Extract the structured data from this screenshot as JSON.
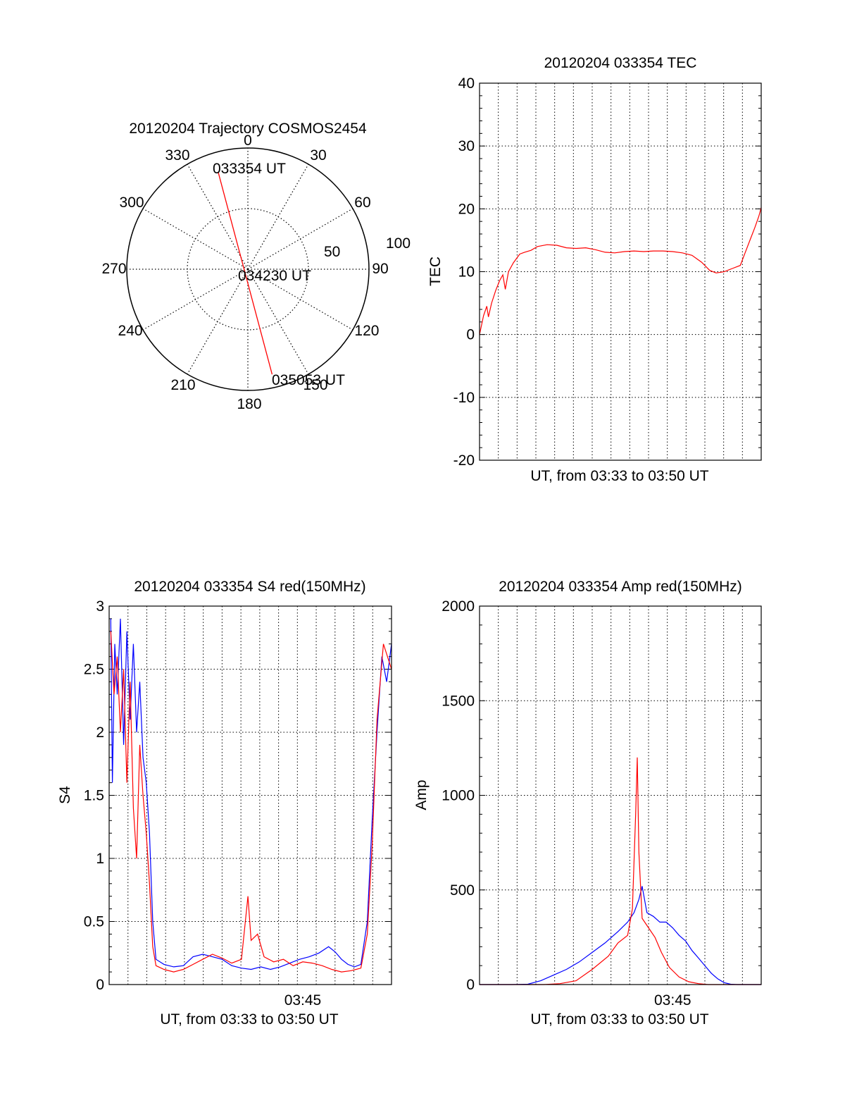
{
  "colors": {
    "red": "#ff0000",
    "blue": "#0000ff",
    "black": "#000000"
  },
  "chart_data": [
    {
      "type": "polar",
      "title": "20120204 Trajectory COSMOS2454",
      "azimuth_labels": [
        "0",
        "30",
        "60",
        "90",
        "120",
        "150",
        "180",
        "210",
        "240",
        "270",
        "300",
        "330"
      ],
      "radius_labels": [
        "50",
        "100"
      ],
      "track": {
        "start": {
          "azimuth": 343,
          "radius": 84
        },
        "end": {
          "azimuth": 167,
          "radius": 89
        }
      },
      "annotations": [
        "033354 UT",
        "034230 UT",
        "035053 UT"
      ],
      "line_color": "#ff0000"
    },
    {
      "type": "line",
      "title": "20120204 033354 TEC",
      "ylabel": "TEC",
      "xlabel": "UT, from 03:33 to 03:50 UT",
      "ylim": [
        -20,
        40
      ],
      "yticks": [
        "-20",
        "-10",
        "0",
        "10",
        "20",
        "30",
        "40"
      ],
      "xlim": [
        0,
        17.5
      ],
      "series": [
        {
          "color": "#ff0000",
          "points": [
            [
              0,
              0
            ],
            [
              0.25,
              3
            ],
            [
              0.45,
              4.5
            ],
            [
              0.55,
              2.8
            ],
            [
              0.75,
              5
            ],
            [
              1.0,
              7
            ],
            [
              1.25,
              8.6
            ],
            [
              1.45,
              9.5
            ],
            [
              1.6,
              7.2
            ],
            [
              1.8,
              10
            ],
            [
              2.1,
              11.4
            ],
            [
              2.5,
              12.8
            ],
            [
              2.8,
              13.1
            ],
            [
              3.2,
              13.4
            ],
            [
              3.6,
              14
            ],
            [
              4.2,
              14.3
            ],
            [
              4.8,
              14.2
            ],
            [
              5.4,
              13.8
            ],
            [
              6.0,
              13.7
            ],
            [
              6.6,
              13.8
            ],
            [
              7.2,
              13.5
            ],
            [
              7.8,
              13.1
            ],
            [
              8.4,
              13
            ],
            [
              9.0,
              13.2
            ],
            [
              9.6,
              13.3
            ],
            [
              10.2,
              13.2
            ],
            [
              10.8,
              13.3
            ],
            [
              11.4,
              13.3
            ],
            [
              12.0,
              13.2
            ],
            [
              12.6,
              13
            ],
            [
              13.2,
              12.6
            ],
            [
              13.8,
              11.5
            ],
            [
              14.3,
              10.2
            ],
            [
              14.7,
              9.8
            ],
            [
              15.2,
              10
            ],
            [
              15.7,
              10.5
            ],
            [
              16.2,
              11
            ],
            [
              16.5,
              13
            ],
            [
              16.8,
              15
            ],
            [
              17.1,
              17
            ],
            [
              17.35,
              18.8
            ],
            [
              17.5,
              20.2
            ]
          ]
        }
      ]
    },
    {
      "type": "line",
      "title": "20120204 033354 S4 red(150MHz)",
      "ylabel": "S4",
      "xlabel": "UT, from 03:33 to 03:50 UT",
      "ylim": [
        0,
        3
      ],
      "yticks": [
        "0",
        "0.5",
        "1",
        "1.5",
        "2",
        "2.5",
        "3"
      ],
      "xtick_label": "03:45",
      "xtick_position": 12.0,
      "xlim": [
        0,
        17.5
      ],
      "series": [
        {
          "name": "",
          "color": "#0000ff",
          "points": [
            [
              0.1,
              2.9
            ],
            [
              0.2,
              1.6
            ],
            [
              0.35,
              2.7
            ],
            [
              0.5,
              2.3
            ],
            [
              0.7,
              2.9
            ],
            [
              0.9,
              1.9
            ],
            [
              1.1,
              2.8
            ],
            [
              1.3,
              2.1
            ],
            [
              1.5,
              2.7
            ],
            [
              1.7,
              2.0
            ],
            [
              1.9,
              2.4
            ],
            [
              2.1,
              1.8
            ],
            [
              2.3,
              1.6
            ],
            [
              2.5,
              1.2
            ],
            [
              2.7,
              0.5
            ],
            [
              2.9,
              0.2
            ],
            [
              3.4,
              0.16
            ],
            [
              4.0,
              0.14
            ],
            [
              4.6,
              0.15
            ],
            [
              5.2,
              0.22
            ],
            [
              5.8,
              0.24
            ],
            [
              6.4,
              0.22
            ],
            [
              7.0,
              0.2
            ],
            [
              7.6,
              0.15
            ],
            [
              8.2,
              0.13
            ],
            [
              8.8,
              0.12
            ],
            [
              9.4,
              0.14
            ],
            [
              10.0,
              0.12
            ],
            [
              10.6,
              0.14
            ],
            [
              11.2,
              0.17
            ],
            [
              11.8,
              0.2
            ],
            [
              12.4,
              0.22
            ],
            [
              13.0,
              0.25
            ],
            [
              13.6,
              0.3
            ],
            [
              14.0,
              0.26
            ],
            [
              14.4,
              0.2
            ],
            [
              14.8,
              0.16
            ],
            [
              15.2,
              0.14
            ],
            [
              15.6,
              0.16
            ],
            [
              16.0,
              0.5
            ],
            [
              16.3,
              1.3
            ],
            [
              16.6,
              2.0
            ],
            [
              16.9,
              2.6
            ],
            [
              17.2,
              2.4
            ],
            [
              17.5,
              2.7
            ]
          ]
        },
        {
          "name": "",
          "color": "#ff0000",
          "points": [
            [
              0.1,
              2.8
            ],
            [
              0.3,
              2.3
            ],
            [
              0.5,
              2.6
            ],
            [
              0.7,
              2.0
            ],
            [
              0.9,
              2.5
            ],
            [
              1.1,
              1.6
            ],
            [
              1.3,
              2.4
            ],
            [
              1.5,
              1.4
            ],
            [
              1.7,
              1.0
            ],
            [
              1.9,
              1.9
            ],
            [
              2.1,
              1.5
            ],
            [
              2.3,
              1.2
            ],
            [
              2.5,
              0.8
            ],
            [
              2.7,
              0.3
            ],
            [
              2.9,
              0.15
            ],
            [
              3.4,
              0.12
            ],
            [
              4.0,
              0.1
            ],
            [
              4.6,
              0.12
            ],
            [
              5.2,
              0.16
            ],
            [
              5.8,
              0.2
            ],
            [
              6.4,
              0.24
            ],
            [
              7.0,
              0.21
            ],
            [
              7.6,
              0.17
            ],
            [
              8.2,
              0.2
            ],
            [
              8.6,
              0.7
            ],
            [
              8.8,
              0.35
            ],
            [
              9.2,
              0.4
            ],
            [
              9.6,
              0.22
            ],
            [
              10.2,
              0.18
            ],
            [
              10.8,
              0.2
            ],
            [
              11.4,
              0.15
            ],
            [
              12.0,
              0.18
            ],
            [
              12.6,
              0.17
            ],
            [
              13.2,
              0.15
            ],
            [
              13.8,
              0.12
            ],
            [
              14.4,
              0.1
            ],
            [
              15.0,
              0.11
            ],
            [
              15.6,
              0.13
            ],
            [
              16.0,
              0.4
            ],
            [
              16.3,
              1.1
            ],
            [
              16.6,
              2.1
            ],
            [
              17.0,
              2.7
            ],
            [
              17.5,
              2.5
            ]
          ]
        }
      ]
    },
    {
      "type": "line",
      "title": "20120204 033354 Amp red(150MHz)",
      "ylabel": "Amp",
      "xlabel": "UT, from 03:33 to 03:50 UT",
      "ylim": [
        0,
        2000
      ],
      "yticks": [
        "0",
        "500",
        "1000",
        "1500",
        "2000"
      ],
      "xtick_label": "03:45",
      "xtick_position": 12.0,
      "xlim": [
        0,
        17.5
      ],
      "series": [
        {
          "name": "",
          "color": "#0000ff",
          "points": [
            [
              0,
              0
            ],
            [
              2.0,
              0
            ],
            [
              3.0,
              2
            ],
            [
              3.8,
              20
            ],
            [
              4.6,
              50
            ],
            [
              5.4,
              80
            ],
            [
              6.2,
              120
            ],
            [
              7.0,
              170
            ],
            [
              7.8,
              220
            ],
            [
              8.6,
              280
            ],
            [
              9.2,
              330
            ],
            [
              9.6,
              380
            ],
            [
              9.9,
              450
            ],
            [
              10.1,
              520
            ],
            [
              10.4,
              380
            ],
            [
              10.8,
              360
            ],
            [
              11.2,
              330
            ],
            [
              11.6,
              330
            ],
            [
              12.0,
              300
            ],
            [
              12.4,
              260
            ],
            [
              12.8,
              230
            ],
            [
              13.2,
              180
            ],
            [
              13.6,
              140
            ],
            [
              14.0,
              100
            ],
            [
              14.4,
              60
            ],
            [
              14.8,
              30
            ],
            [
              15.2,
              10
            ],
            [
              15.6,
              2
            ],
            [
              16.0,
              0
            ],
            [
              17.5,
              0
            ]
          ]
        },
        {
          "name": "",
          "color": "#ff0000",
          "points": [
            [
              0,
              0
            ],
            [
              4.0,
              0
            ],
            [
              5.0,
              5
            ],
            [
              6.0,
              20
            ],
            [
              7.0,
              80
            ],
            [
              8.0,
              150
            ],
            [
              8.6,
              220
            ],
            [
              9.2,
              260
            ],
            [
              9.5,
              400
            ],
            [
              9.7,
              900
            ],
            [
              9.8,
              1200
            ],
            [
              9.9,
              700
            ],
            [
              10.1,
              350
            ],
            [
              10.5,
              300
            ],
            [
              10.9,
              250
            ],
            [
              11.3,
              170
            ],
            [
              11.8,
              90
            ],
            [
              12.4,
              40
            ],
            [
              13.0,
              15
            ],
            [
              13.6,
              5
            ],
            [
              14.2,
              0
            ],
            [
              17.5,
              0
            ]
          ]
        }
      ]
    }
  ]
}
